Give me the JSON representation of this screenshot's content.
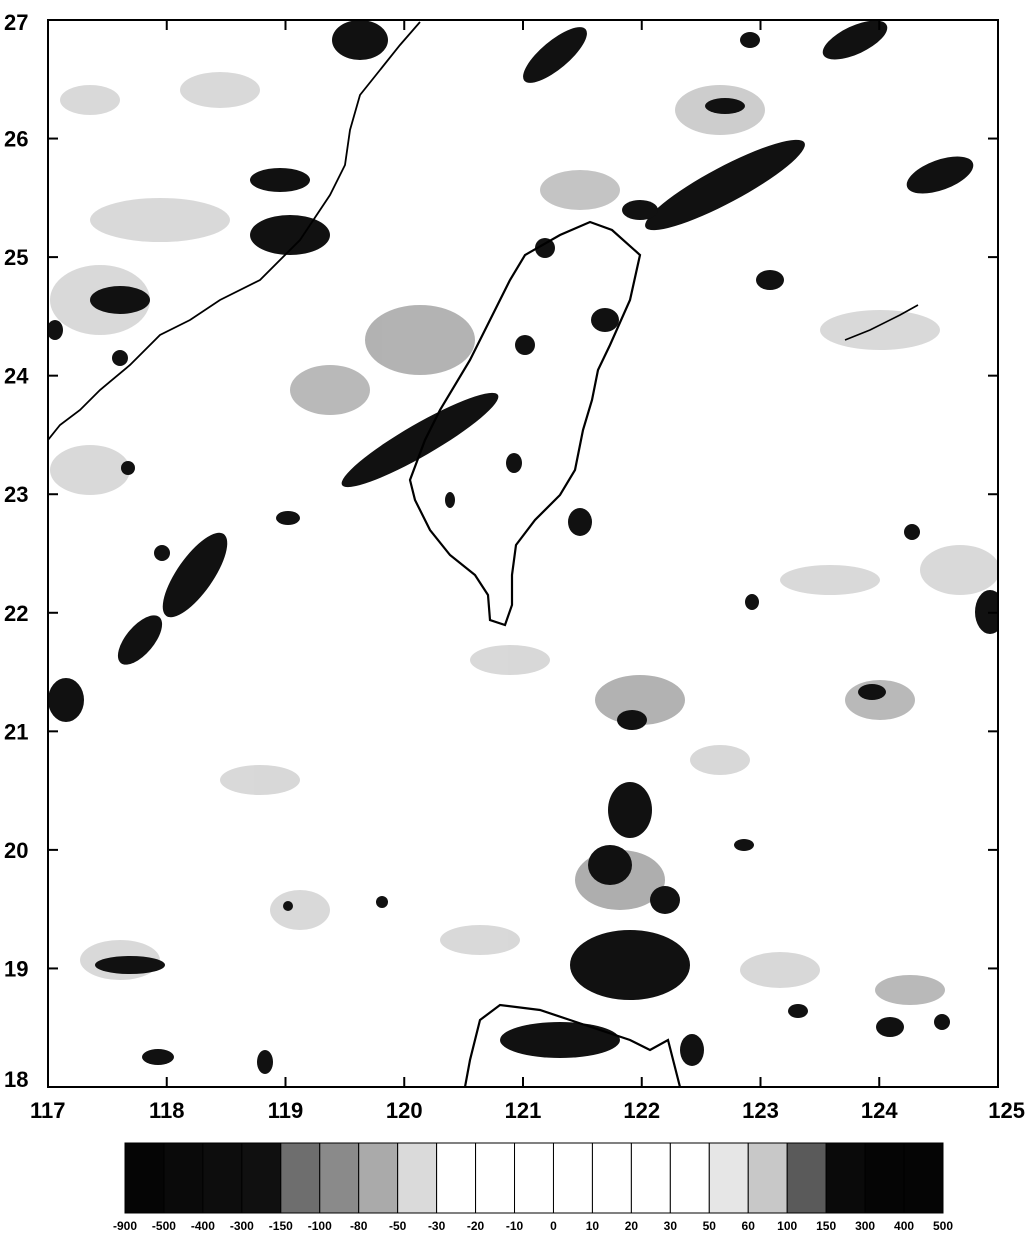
{
  "map": {
    "x_ticks": [
      "117",
      "118",
      "119",
      "120",
      "121",
      "122",
      "123",
      "124",
      "125"
    ],
    "y_ticks": [
      "27",
      "26",
      "25",
      "24",
      "23",
      "22",
      "21",
      "20",
      "19",
      "18"
    ],
    "lon_range": [
      117,
      125
    ],
    "lat_range": [
      18,
      27
    ]
  },
  "colorbar": {
    "labels": [
      "-900",
      "-500",
      "-400",
      "-300",
      "-150",
      "-100",
      "-80",
      "-50",
      "-30",
      "-20",
      "-10",
      "0",
      "10",
      "20",
      "30",
      "50",
      "60",
      "100",
      "150",
      "300",
      "400",
      "500"
    ],
    "colors": [
      "#050505",
      "#0a0a0a",
      "#0d0d0d",
      "#101010",
      "#6e6e6e",
      "#8a8a8a",
      "#aaaaaa",
      "#dadada",
      "#ffffff",
      "#ffffff",
      "#ffffff",
      "#ffffff",
      "#ffffff",
      "#ffffff",
      "#ffffff",
      "#e6e6e6",
      "#c8c8c8",
      "#5a5a5a",
      "#0a0a0a",
      "#050505",
      "#050505"
    ]
  }
}
